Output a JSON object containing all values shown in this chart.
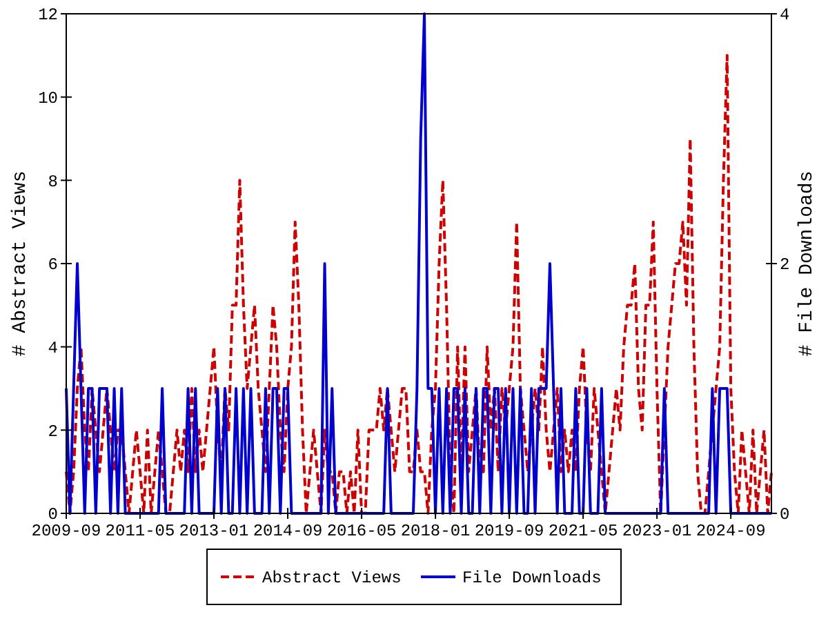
{
  "chart_data": {
    "type": "line",
    "xlabel": null,
    "ylabel": "# Abstract Views",
    "y2label": "# File Downloads",
    "categories": [
      "2009-09",
      null,
      null,
      null,
      null,
      null,
      null,
      null,
      null,
      null,
      null,
      null,
      null,
      null,
      null,
      null,
      null,
      null,
      null,
      null,
      "2011-05",
      null,
      null,
      null,
      null,
      null,
      null,
      null,
      null,
      null,
      null,
      null,
      null,
      null,
      null,
      null,
      null,
      null,
      null,
      null,
      "2013-01",
      null,
      null,
      null,
      null,
      null,
      null,
      null,
      null,
      null,
      null,
      null,
      null,
      null,
      null,
      null,
      null,
      null,
      null,
      null,
      "2014-09",
      null,
      null,
      null,
      null,
      null,
      null,
      null,
      null,
      null,
      null,
      null,
      null,
      null,
      null,
      null,
      null,
      null,
      null,
      null,
      "2016-05",
      null,
      null,
      null,
      null,
      null,
      null,
      null,
      null,
      null,
      null,
      null,
      null,
      null,
      null,
      null,
      null,
      null,
      null,
      null,
      "2018-01",
      null,
      null,
      null,
      null,
      null,
      null,
      null,
      null,
      null,
      null,
      null,
      null,
      null,
      null,
      null,
      null,
      null,
      null,
      null,
      "2019-09",
      null,
      null,
      null,
      null,
      null,
      null,
      null,
      null,
      null,
      null,
      null,
      null,
      null,
      null,
      null,
      null,
      null,
      null,
      null,
      "2021-05",
      null,
      null,
      null,
      null,
      null,
      null,
      null,
      null,
      null,
      null,
      null,
      null,
      null,
      null,
      null,
      null,
      null,
      null,
      null,
      "2023-01",
      null,
      null,
      null,
      null,
      null,
      null,
      null,
      null,
      null,
      null,
      null,
      null,
      null,
      null,
      null,
      null,
      null,
      null,
      null,
      "2024-09",
      null,
      null,
      null,
      null,
      null,
      null,
      null,
      null,
      null,
      null,
      null
    ],
    "series": [
      {
        "name": "Abstract Views",
        "color": "#cc0000",
        "line_style": "dashed",
        "values": [
          1,
          0,
          1,
          3,
          4,
          2,
          1,
          3,
          2,
          1,
          2,
          3,
          2,
          1,
          2,
          2,
          1,
          0,
          1,
          2,
          1,
          0,
          2,
          0,
          1,
          2,
          1,
          0,
          0,
          1,
          2,
          1,
          2,
          1,
          3,
          1,
          2,
          1,
          2,
          3,
          4,
          2,
          1,
          3,
          2,
          5,
          5,
          8,
          5,
          3,
          4,
          5,
          3,
          2,
          1,
          3,
          5,
          4,
          2,
          1,
          3,
          4,
          7,
          5,
          2,
          0,
          1,
          2,
          1,
          0,
          2,
          1,
          1,
          0,
          1,
          1,
          0,
          1,
          0,
          2,
          0,
          0,
          2,
          2,
          2,
          3,
          2,
          3,
          2,
          1,
          2,
          3,
          3,
          1,
          1,
          2,
          1,
          1,
          0,
          2,
          3,
          6,
          8,
          5,
          1,
          0,
          4,
          1,
          4,
          1,
          2,
          3,
          1,
          1,
          4,
          2,
          3,
          1,
          3,
          2,
          3,
          4,
          7,
          3,
          2,
          1,
          2,
          3,
          2,
          4,
          2,
          1,
          2,
          3,
          1,
          2,
          1,
          2,
          1,
          3,
          4,
          2,
          1,
          3,
          2,
          1,
          0,
          1,
          2,
          3,
          2,
          4,
          5,
          5,
          6,
          3,
          2,
          5,
          5,
          7,
          3,
          0,
          2,
          4,
          5,
          6,
          6,
          7,
          5,
          9,
          4,
          1,
          0,
          0,
          1,
          2,
          3,
          4,
          8,
          11,
          3,
          1,
          0,
          2,
          1,
          0,
          2,
          0,
          1,
          2,
          0,
          1
        ]
      },
      {
        "name": "File Downloads",
        "color": "#0000cc",
        "line_style": "solid",
        "axis": "y2",
        "values": [
          1,
          0,
          1,
          2,
          1,
          0,
          1,
          1,
          0,
          1,
          1,
          1,
          0,
          1,
          0,
          1,
          0,
          0,
          0,
          0,
          0,
          0,
          0,
          0,
          0,
          0,
          1,
          0,
          0,
          0,
          0,
          0,
          0,
          1,
          0,
          1,
          0,
          0,
          0,
          0,
          0,
          1,
          0,
          1,
          0,
          0,
          1,
          0,
          1,
          0,
          1,
          0,
          0,
          0,
          1,
          0,
          1,
          1,
          0,
          1,
          1,
          0,
          0,
          0,
          0,
          0,
          0,
          0,
          0,
          0,
          2,
          0,
          1,
          0,
          0,
          0,
          0,
          0,
          0,
          0,
          0,
          0,
          0,
          0,
          0,
          0,
          0,
          1,
          0,
          0,
          0,
          0,
          0,
          0,
          0,
          1,
          3,
          4,
          1,
          1,
          0,
          1,
          0,
          1,
          0,
          1,
          1,
          0,
          1,
          0,
          0,
          1,
          0,
          1,
          1,
          0,
          1,
          1,
          0,
          1,
          0,
          1,
          0,
          1,
          0,
          0,
          1,
          0,
          1,
          1,
          1,
          2,
          1,
          0,
          1,
          0,
          0,
          0,
          1,
          0,
          0,
          1,
          0,
          0,
          0,
          1,
          0,
          0,
          0,
          0,
          0,
          0,
          0,
          0,
          0,
          0,
          0,
          0,
          0,
          0,
          0,
          0,
          1,
          0,
          0,
          0,
          0,
          0,
          0,
          0,
          0,
          0,
          0,
          0,
          0,
          1,
          0,
          1,
          1,
          1,
          0,
          0,
          0,
          0,
          0,
          0,
          0,
          0,
          0,
          0,
          0,
          0
        ]
      }
    ],
    "ylim": [
      0,
      12
    ],
    "yticks": [
      0,
      2,
      4,
      6,
      8,
      10,
      12
    ],
    "y2lim": [
      0,
      4
    ],
    "y2ticks": [
      0,
      2,
      4
    ],
    "grid": false,
    "legend": "bottom"
  }
}
